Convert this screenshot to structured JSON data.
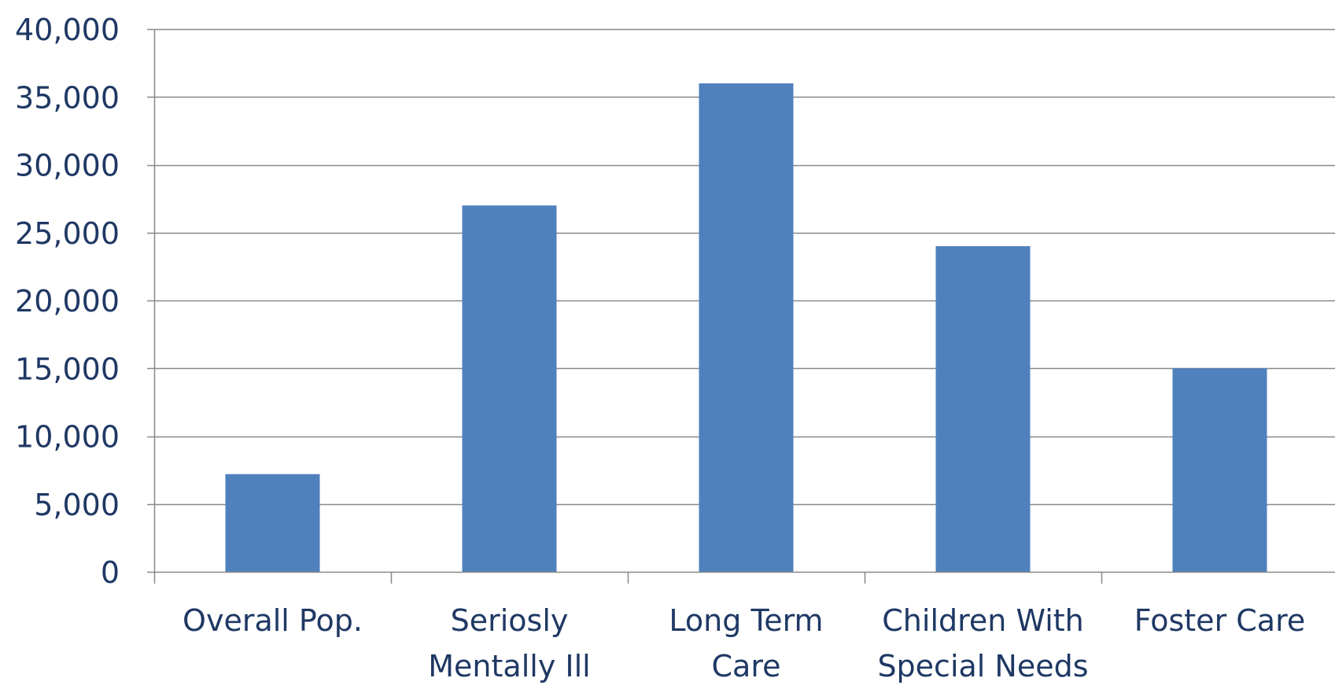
{
  "chart_data": {
    "type": "bar",
    "title": "",
    "xlabel": "",
    "ylabel": "",
    "categories": [
      [
        "Overall Pop."
      ],
      [
        "Seriosly",
        "Mentally Ill"
      ],
      [
        "Long Term",
        "Care"
      ],
      [
        "Children With",
        "Special Needs"
      ],
      [
        "Foster Care"
      ]
    ],
    "values": [
      7200,
      27000,
      36000,
      24000,
      15000
    ],
    "ylim": [
      0,
      40000
    ],
    "yticks": [
      0,
      5000,
      10000,
      15000,
      20000,
      25000,
      30000,
      35000,
      40000
    ],
    "ytick_labels": [
      "0",
      "5,000",
      "10,000",
      "15,000",
      "20,000",
      "25,000",
      "30,000",
      "35,000",
      "40,000"
    ],
    "grid": true,
    "legend": "none",
    "colors": {
      "bar": "#4f81bd",
      "text": "#1f3864",
      "grid": "#888888",
      "axis": "#888888"
    }
  }
}
